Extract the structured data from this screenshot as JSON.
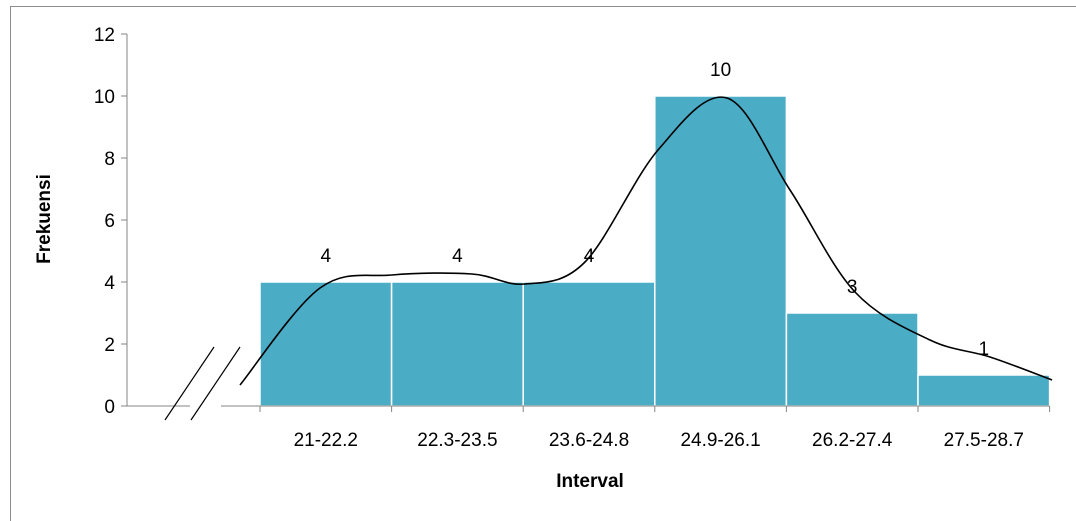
{
  "chart_data": {
    "type": "bar",
    "categories": [
      "21-22.2",
      "22.3-23.5",
      "23.6-24.8",
      "24.9-26.1",
      "26.2-27.4",
      "27.5-28.7"
    ],
    "values": [
      4,
      4,
      4,
      10,
      3,
      1
    ],
    "data_labels": [
      "4",
      "4",
      "4",
      "10",
      "3",
      "1"
    ],
    "xlabel": "Interval",
    "ylabel": "Frekuensi",
    "ylim": [
      0,
      12
    ],
    "yticks": [
      0,
      2,
      4,
      6,
      8,
      10,
      12
    ],
    "ytick_labels": [
      "0",
      "2",
      "4",
      "6",
      "8",
      "10",
      "12"
    ],
    "grid": false,
    "legend": "none",
    "bar_color": "#4bacc6",
    "overlay_curve": "smoothed frequency curve",
    "axis_break": true
  }
}
